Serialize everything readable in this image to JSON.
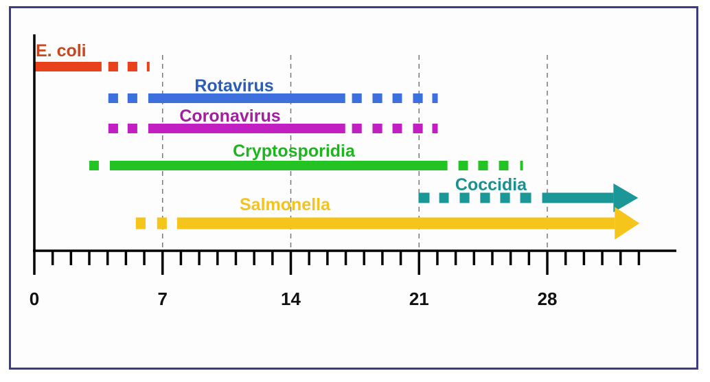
{
  "chart_data": {
    "type": "timeline",
    "title": "",
    "xlabel": "",
    "ylabel": "",
    "xlim": [
      0,
      35
    ],
    "x_ticks": [
      0,
      7,
      14,
      21,
      28
    ],
    "minor_tick_step": 1,
    "minor_tick_max": 33,
    "grid": "dashed vertical lines at 7, 14, 21, 28",
    "series": [
      {
        "name": "E. coli",
        "color": "#e8421c",
        "label_color": "#c9461e",
        "segments": [
          {
            "type": "solid",
            "range": [
              0,
              3.67
            ]
          },
          {
            "type": "dash",
            "range": [
              4.04,
              4.57
            ]
          },
          {
            "type": "dash",
            "range": [
              5.09,
              5.62
            ]
          },
          {
            "type": "dash",
            "range": [
              6.14,
              6.29
            ]
          }
        ]
      },
      {
        "name": "Rotavirus",
        "color": "#3d6fdd",
        "label_color": "#2b5db2",
        "segments": [
          {
            "type": "dash",
            "range": [
              4.04,
              4.57
            ]
          },
          {
            "type": "dash",
            "range": [
              5.09,
              5.62
            ]
          },
          {
            "type": "solid",
            "range": [
              6.22,
              16.97
            ]
          },
          {
            "type": "dash",
            "range": [
              17.34,
              17.87
            ]
          },
          {
            "type": "dash",
            "range": [
              18.46,
              18.99
            ]
          },
          {
            "type": "dash",
            "range": [
              19.55,
              20.07
            ]
          },
          {
            "type": "dash",
            "range": [
              20.67,
              21.2
            ]
          },
          {
            "type": "dash",
            "range": [
              21.72,
              22.02
            ]
          }
        ]
      },
      {
        "name": "Coronavirus",
        "color": "#c21fc2",
        "label_color": "#a0209e",
        "segments": [
          {
            "type": "dash",
            "range": [
              4.04,
              4.57
            ]
          },
          {
            "type": "dash",
            "range": [
              5.09,
              5.62
            ]
          },
          {
            "type": "solid",
            "range": [
              6.22,
              16.97
            ]
          },
          {
            "type": "dash",
            "range": [
              17.34,
              17.87
            ]
          },
          {
            "type": "dash",
            "range": [
              18.46,
              18.99
            ]
          },
          {
            "type": "dash",
            "range": [
              19.55,
              20.07
            ]
          },
          {
            "type": "dash",
            "range": [
              20.67,
              21.2
            ]
          },
          {
            "type": "dash",
            "range": [
              21.72,
              22.02
            ]
          }
        ]
      },
      {
        "name": "Cryptosporidia",
        "color": "#22c322",
        "label_color": "#1db51d",
        "segments": [
          {
            "type": "dash",
            "range": [
              3.0,
              3.52
            ]
          },
          {
            "type": "solid",
            "range": [
              4.12,
              22.55
            ]
          },
          {
            "type": "dash",
            "range": [
              23.15,
              23.67
            ]
          },
          {
            "type": "dash",
            "range": [
              24.23,
              24.76
            ]
          },
          {
            "type": "dash",
            "range": [
              25.36,
              25.88
            ]
          },
          {
            "type": "dash",
            "range": [
              26.52,
              26.67
            ]
          }
        ]
      },
      {
        "name": "Coccidia",
        "color": "#1b9797",
        "label_color": "#1b9090",
        "segments": [
          {
            "type": "dash",
            "range": [
              20.97,
              21.57
            ]
          },
          {
            "type": "dash",
            "range": [
              22.1,
              22.62
            ]
          },
          {
            "type": "dash",
            "range": [
              23.22,
              23.75
            ]
          },
          {
            "type": "dash",
            "range": [
              24.34,
              24.87
            ]
          },
          {
            "type": "dash",
            "range": [
              25.43,
              25.96
            ]
          },
          {
            "type": "dash",
            "range": [
              26.52,
              27.12
            ]
          },
          {
            "type": "arrow",
            "range": [
              27.72,
              32.96
            ]
          }
        ]
      },
      {
        "name": "Salmonella",
        "color": "#f6c51b",
        "label_color": "#f2c321",
        "segments": [
          {
            "type": "dash",
            "range": [
              5.54,
              6.07
            ]
          },
          {
            "type": "dash",
            "range": [
              6.7,
              7.23
            ]
          },
          {
            "type": "arrow",
            "range": [
              7.79,
              33.03
            ]
          }
        ]
      }
    ]
  }
}
